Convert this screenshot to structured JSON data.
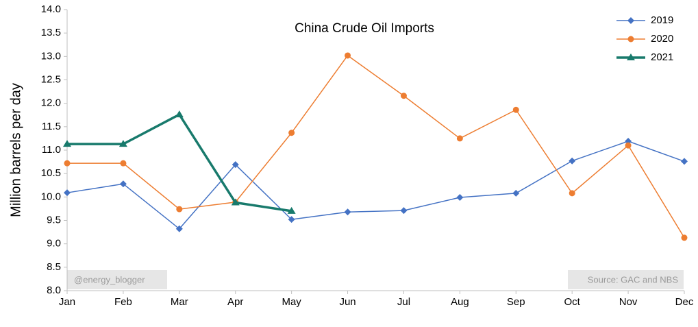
{
  "chart_data": {
    "type": "line",
    "title": "China Crude Oil Imports",
    "y_label": "Million barrels per day",
    "categories": [
      "Jan",
      "Feb",
      "Mar",
      "Apr",
      "May",
      "Jun",
      "Jul",
      "Aug",
      "Sep",
      "Oct",
      "Nov",
      "Dec"
    ],
    "series": [
      {
        "name": "2019",
        "color": "#4472c4",
        "marker": "diamond",
        "line_width": 1.5,
        "values": [
          10.09,
          10.28,
          9.32,
          10.69,
          9.52,
          9.68,
          9.71,
          9.99,
          10.08,
          10.77,
          11.19,
          10.76
        ]
      },
      {
        "name": "2020",
        "color": "#ed7d31",
        "marker": "circle",
        "line_width": 1.5,
        "values": [
          10.72,
          10.72,
          9.74,
          9.89,
          11.37,
          13.02,
          12.16,
          11.25,
          11.86,
          10.08,
          11.1,
          9.13
        ]
      },
      {
        "name": "2021",
        "color": "#187a6c",
        "marker": "triangle",
        "line_width": 3.5,
        "values": [
          11.13,
          11.13,
          11.76,
          9.88,
          9.7,
          null,
          null,
          null,
          null,
          null,
          null,
          null
        ]
      }
    ],
    "ylim": [
      8,
      14
    ],
    "yticks": [
      {
        "value": 8,
        "label": "8.0"
      },
      8.5,
      {
        "value": 9,
        "label": "9.0"
      },
      9.5,
      {
        "value": 10,
        "label": "10.0"
      },
      10.5,
      {
        "value": 11,
        "label": "11.0"
      },
      11.5,
      {
        "value": 12,
        "label": "12.0"
      },
      12.5,
      {
        "value": 13,
        "label": "13.0"
      },
      13.5,
      {
        "value": 14,
        "label": "14.0"
      }
    ],
    "legend": "upper right",
    "annotations": [
      "@energy_blogger",
      "Source: GAC and NBS"
    ]
  }
}
